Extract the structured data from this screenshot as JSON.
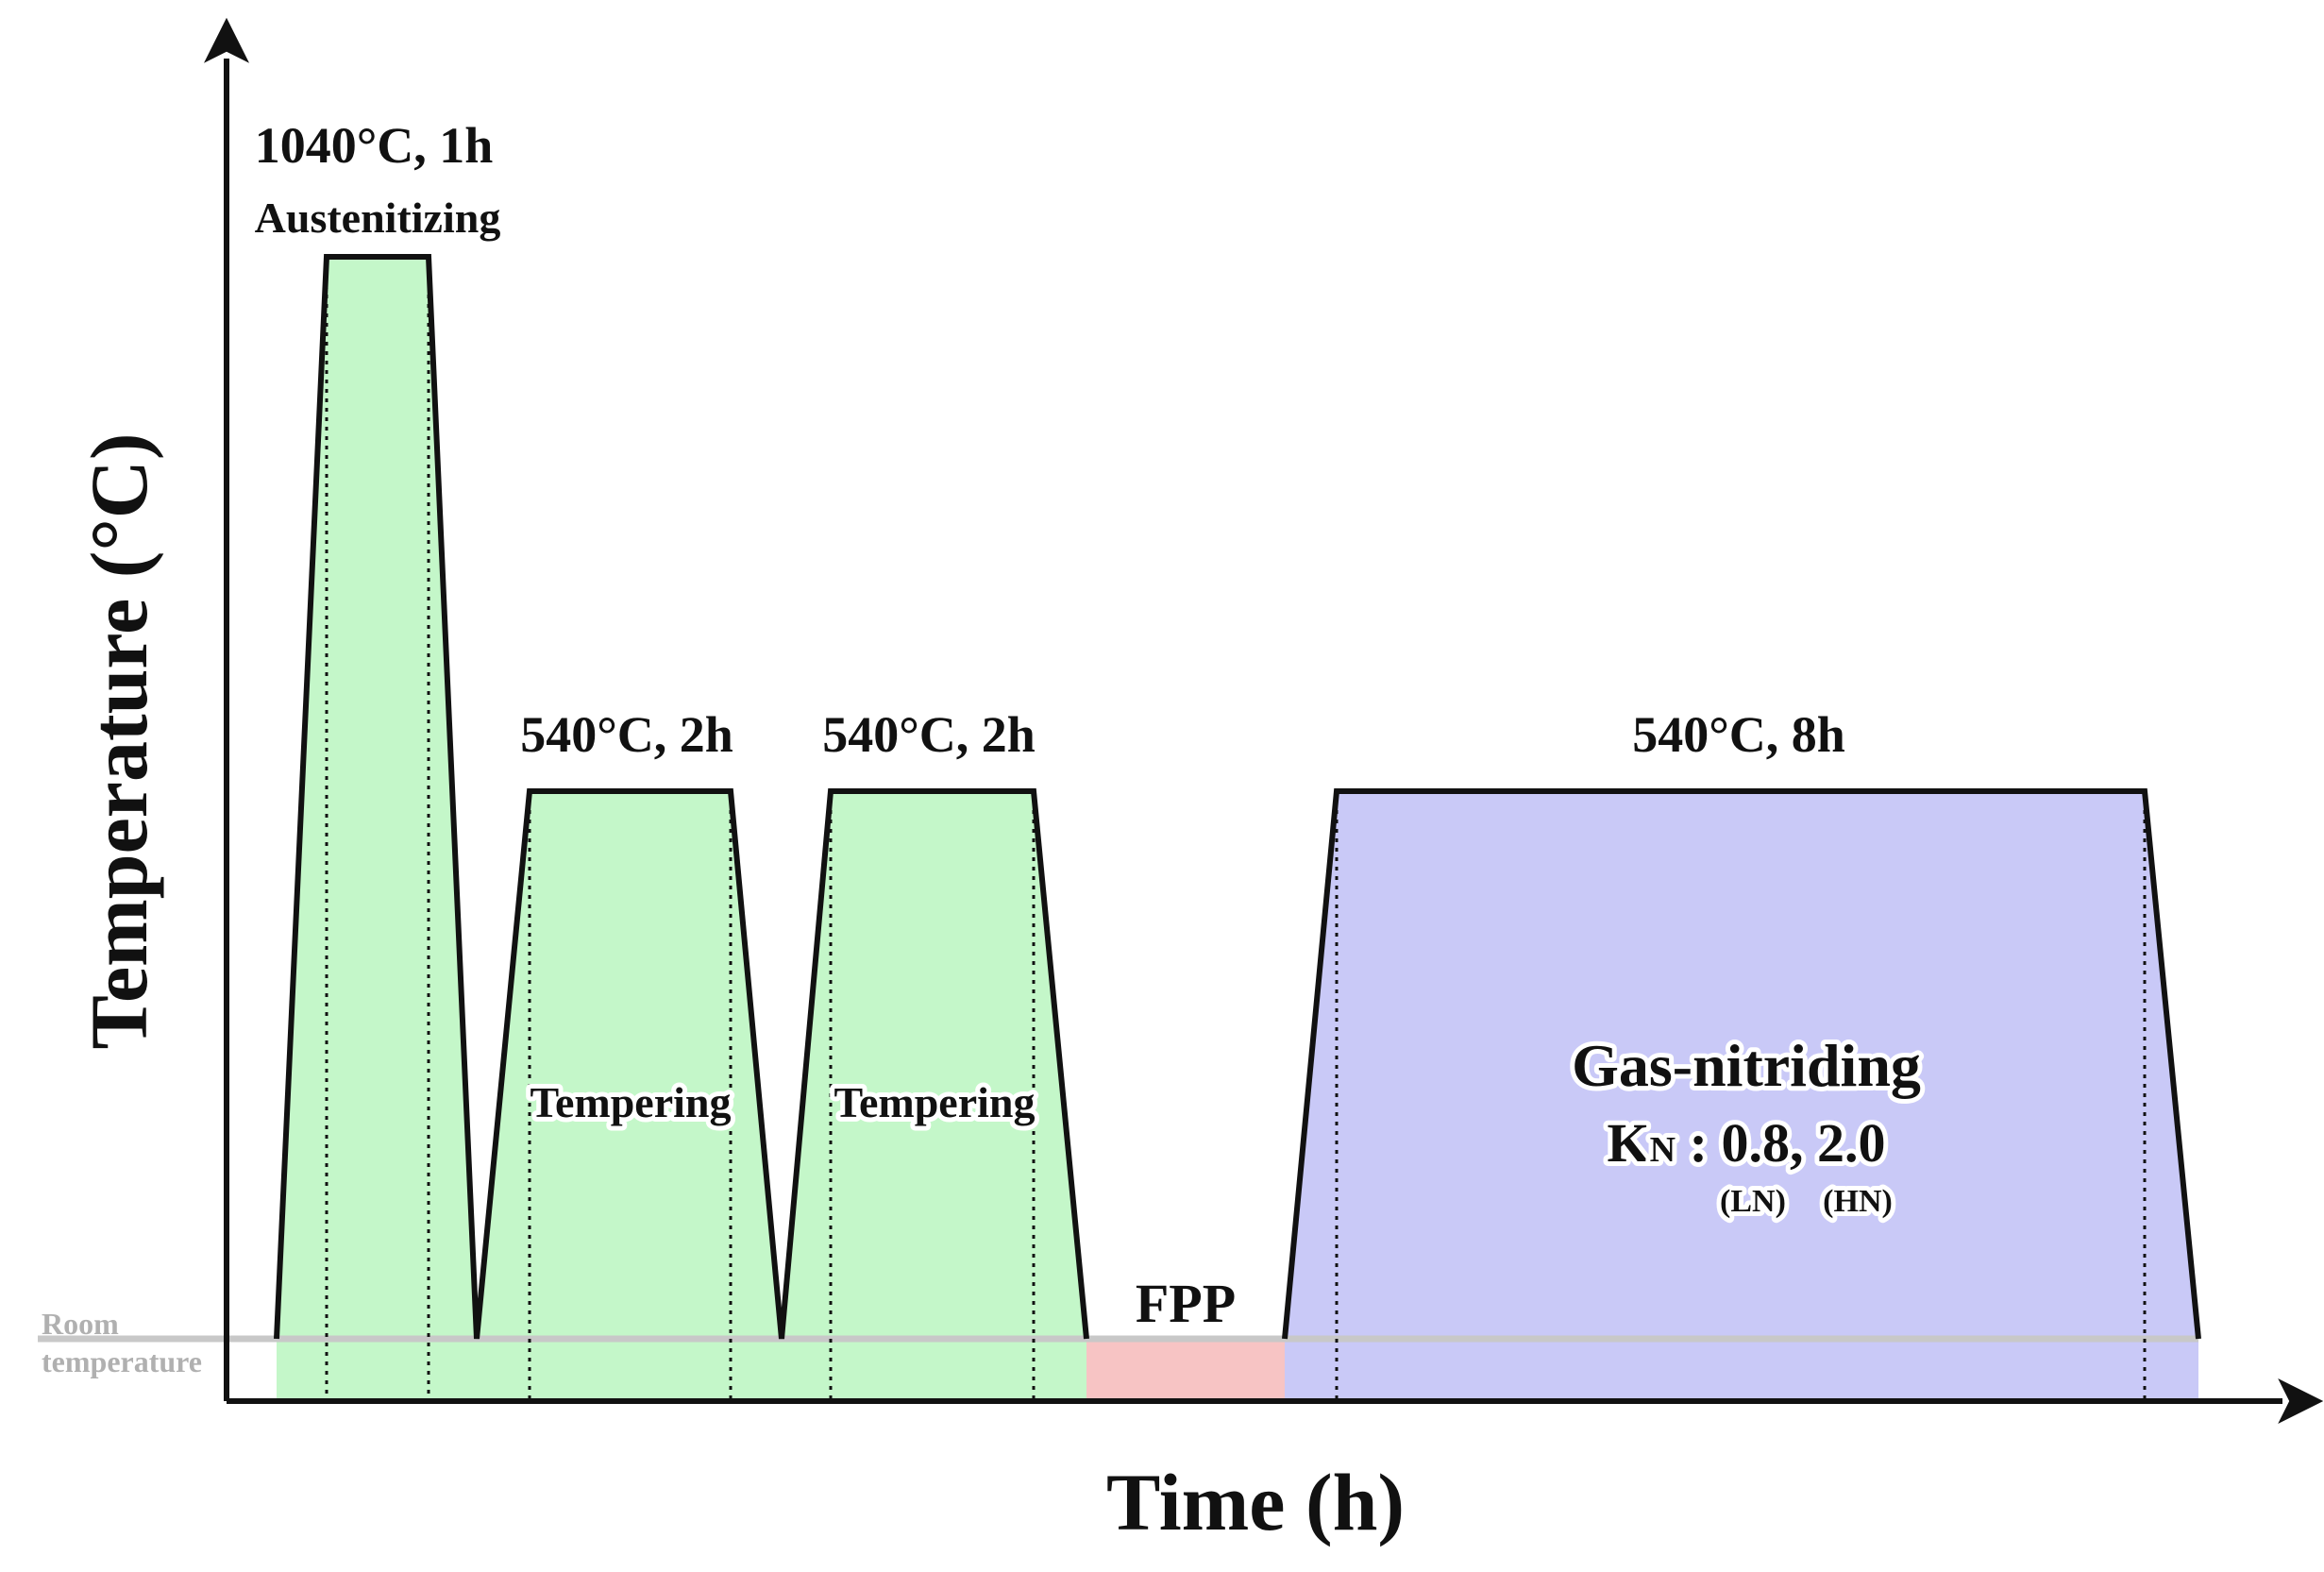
{
  "axes": {
    "y_title": "Temperature (°C)",
    "x_title": "Time (h)"
  },
  "room_temperature": {
    "line1": "Room",
    "line2": "temperature"
  },
  "stages": [
    {
      "label_temp": "1040°C, 1h",
      "label_name": "Austenitizing",
      "color": "#c4f7c9"
    },
    {
      "label_temp": "540°C, 2h",
      "label_name": "Tempering",
      "color": "#c4f7c9"
    },
    {
      "label_temp": "540°C, 2h",
      "label_name": "Tempering",
      "color": "#c4f7c9"
    },
    {
      "label_temp": "",
      "label_name": "FPP",
      "color": "#f7c4c4"
    },
    {
      "label_temp": "540°C, 8h",
      "label_name": "Gas-nitriding",
      "color": "#c9c9f7"
    }
  ],
  "nitriding": {
    "kn_symbol": "K",
    "kn_subscript": "N",
    "kn_values": " : 0.8, 2.0",
    "ln": "(LN)",
    "hn": "(HN)"
  },
  "colors": {
    "heat_treat_fill": "#c4f7c9",
    "fpp_fill": "#f7c4c4",
    "nitriding_fill": "#c9c9f7",
    "room_line": "#c8c8c8",
    "axis": "#111111"
  }
}
